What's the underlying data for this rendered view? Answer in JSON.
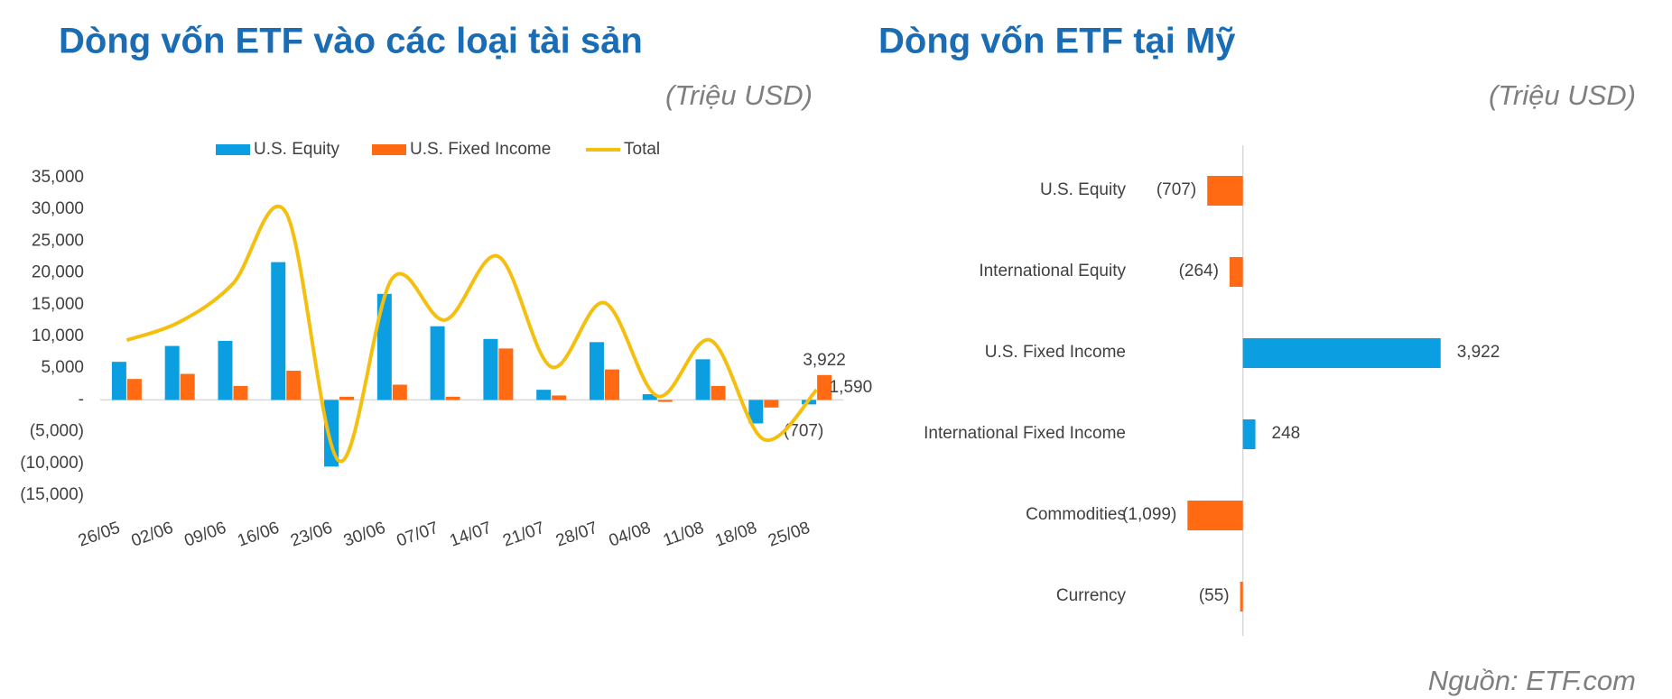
{
  "chart_data": [
    {
      "type": "combo",
      "title": "Dòng vốn ETF vào các loại tài sản",
      "unit": "(Triệu USD)",
      "categories": [
        "26/05",
        "02/06",
        "09/06",
        "16/06",
        "23/06",
        "30/06",
        "07/07",
        "14/07",
        "21/07",
        "28/07",
        "04/08",
        "11/08",
        "18/08",
        "25/08"
      ],
      "series": [
        {
          "name": "U.S. Equity",
          "kind": "bar",
          "color": "#0b9fe1",
          "values": [
            6000,
            8500,
            9300,
            21700,
            -10500,
            16700,
            11600,
            9600,
            1600,
            9100,
            900,
            6400,
            -3700,
            -707
          ],
          "value_labels": [
            null,
            null,
            null,
            null,
            null,
            null,
            null,
            null,
            null,
            null,
            null,
            null,
            null,
            "(707)"
          ]
        },
        {
          "name": "U.S. Fixed Income",
          "kind": "bar",
          "color": "#ff6a13",
          "values": [
            3300,
            4100,
            2200,
            4600,
            500,
            2400,
            500,
            8100,
            700,
            4800,
            -300,
            2200,
            -1200,
            3922
          ],
          "value_labels": [
            null,
            null,
            null,
            null,
            null,
            null,
            null,
            null,
            null,
            null,
            null,
            null,
            null,
            "3,922"
          ]
        },
        {
          "name": "Total",
          "kind": "line",
          "color": "#f5bf10",
          "values": [
            9400,
            12300,
            18300,
            29500,
            -9600,
            19100,
            12600,
            22600,
            5200,
            15300,
            600,
            9400,
            -6200,
            1590
          ],
          "value_labels": [
            null,
            null,
            null,
            null,
            null,
            null,
            null,
            null,
            null,
            null,
            null,
            null,
            null,
            "1,590"
          ]
        }
      ],
      "ylim": [
        -15000,
        35000
      ],
      "yticks": [
        {
          "value": -15000,
          "label": "(15,000)"
        },
        {
          "value": -10000,
          "label": "(10,000)"
        },
        {
          "value": -5000,
          "label": "(5,000)"
        },
        {
          "value": 0,
          "label": "-"
        },
        {
          "value": 5000,
          "label": "5,000"
        },
        {
          "value": 10000,
          "label": "10,000"
        },
        {
          "value": 15000,
          "label": "15,000"
        },
        {
          "value": 20000,
          "label": "20,000"
        },
        {
          "value": 25000,
          "label": "25,000"
        },
        {
          "value": 30000,
          "label": "30,000"
        },
        {
          "value": 35000,
          "label": "35,000"
        }
      ],
      "grid": false,
      "legend": "top"
    },
    {
      "type": "hbar",
      "title": "Dòng vốn ETF tại Mỹ",
      "unit": "(Triệu USD)",
      "categories": [
        "U.S. Equity",
        "International Equity",
        "U.S. Fixed Income",
        "International Fixed Income",
        "Commodities",
        "Currency"
      ],
      "values": [
        -707,
        -264,
        3922,
        248,
        -1099,
        -55
      ],
      "value_labels": [
        "(707)",
        "(264)",
        "3,922",
        "248",
        "(1,099)",
        "(55)"
      ],
      "colors": [
        "#ff6a13",
        "#ff6a13",
        "#0b9fe1",
        "#0b9fe1",
        "#ff6a13",
        "#ff6a13"
      ],
      "xlim": [
        -2000,
        4500
      ]
    }
  ],
  "source": "Nguồn: ETF.com"
}
